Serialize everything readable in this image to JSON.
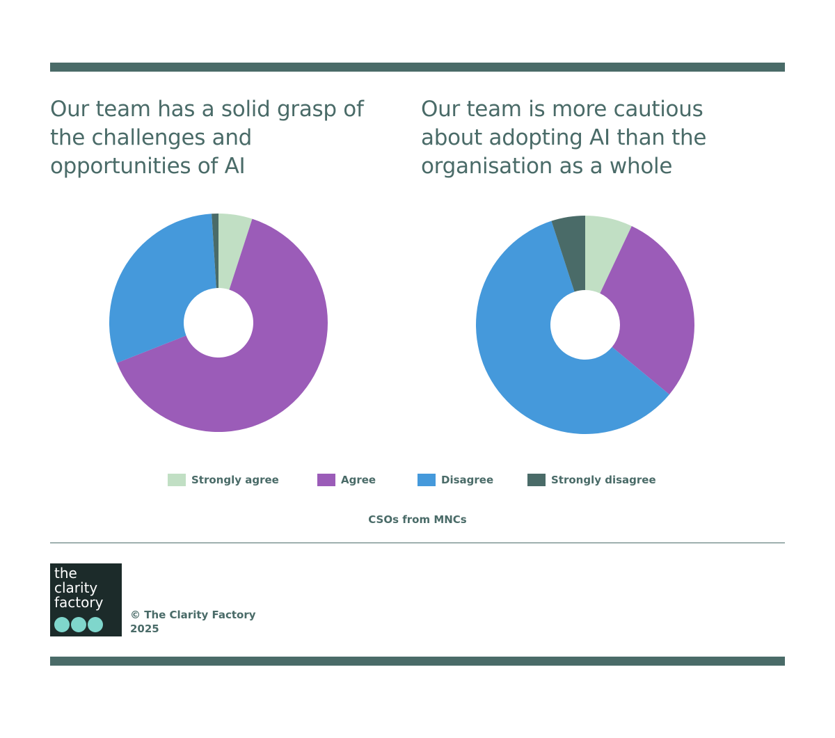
{
  "chart_data": [
    {
      "type": "pie",
      "title": "Our team has a solid grasp of the challenges and opportunities of AI",
      "categories": [
        "Strongly agree",
        "Agree",
        "Disagree",
        "Strongly disagree"
      ],
      "values": [
        5,
        64,
        30,
        1
      ],
      "colors": [
        "#c1dfc4",
        "#9b5cb8",
        "#4599db",
        "#4a6b68"
      ],
      "donut": true
    },
    {
      "type": "pie",
      "title": "Our team is more cautious about adopting AI than the organisation as a whole",
      "categories": [
        "Strongly agree",
        "Agree",
        "Disagree",
        "Strongly disagree"
      ],
      "values": [
        7,
        29,
        59,
        5
      ],
      "colors": [
        "#c1dfc4",
        "#9b5cb8",
        "#4599db",
        "#4a6b68"
      ],
      "donut": true
    }
  ],
  "legend": {
    "items": [
      {
        "label": "Strongly agree",
        "color": "#c1dfc4"
      },
      {
        "label": "Agree",
        "color": "#9b5cb8"
      },
      {
        "label": "Disagree",
        "color": "#4599db"
      },
      {
        "label": "Strongly disagree",
        "color": "#4a6b68"
      }
    ]
  },
  "note": "CSOs from MNCs",
  "logo": {
    "line1": "the",
    "line2": "clarity",
    "line3": "factory"
  },
  "footer": {
    "copyright_line1": "© The Clarity Factory",
    "copyright_line2": "2025"
  },
  "colors": {
    "accent": "#4a6b68",
    "logo_bg": "#1c2b2a",
    "logo_dots": "#7fd6cc"
  }
}
